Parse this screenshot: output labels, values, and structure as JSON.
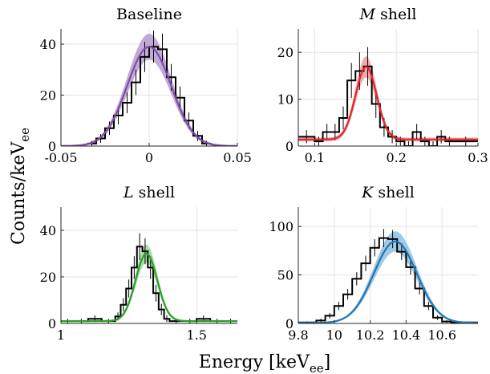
{
  "figure": {
    "ylabel_main": "Counts/keV",
    "ylabel_sub": "ee",
    "xlabel_main": "Energy [keV",
    "xlabel_sub": "ee",
    "xlabel_end": "]"
  },
  "chart_data": [
    {
      "type": "line",
      "title": "Baseline",
      "title_italic": "",
      "title_rest": "",
      "fit_color": "#7b4fa6",
      "band_color": "#b79bd0",
      "xlim": [
        -0.05,
        0.05
      ],
      "ylim": [
        0,
        46
      ],
      "xticks": [
        -0.05,
        0,
        0.05
      ],
      "xtick_labels": [
        "-0.05",
        "0",
        "0.05"
      ],
      "yticks": [
        0,
        20,
        40
      ],
      "ytick_labels": [
        "0",
        "20",
        "40"
      ],
      "hist": {
        "edges": [
          -0.035,
          -0.03,
          -0.025,
          -0.02,
          -0.015,
          -0.01,
          -0.005,
          0,
          0.005,
          0.01,
          0.015,
          0.02,
          0.025,
          0.03,
          0.035
        ],
        "counts": [
          1,
          3,
          7,
          12,
          17,
          25,
          35,
          39,
          38,
          27,
          19,
          10,
          4,
          1
        ]
      },
      "fit": {
        "amp": 39,
        "mu": 0.0,
        "sigma": 0.0125,
        "bg": 0
      }
    },
    {
      "type": "line",
      "title": "",
      "title_italic": "M",
      "title_rest": " shell",
      "fit_color": "#e0262b",
      "band_color": "#f29a9c",
      "xlim": [
        0.08,
        0.3
      ],
      "ylim": [
        0,
        25
      ],
      "xticks": [
        0.1,
        0.2,
        0.3
      ],
      "xtick_labels": [
        "0.1",
        "0.2",
        "0.3"
      ],
      "yticks": [
        0,
        10,
        20
      ],
      "ytick_labels": [
        "0",
        "10",
        "20"
      ],
      "hist": {
        "edges": [
          0.08,
          0.1,
          0.11,
          0.12,
          0.13,
          0.14,
          0.15,
          0.16,
          0.17,
          0.18,
          0.19,
          0.2,
          0.21,
          0.22,
          0.23,
          0.24,
          0.25,
          0.26,
          0.27,
          0.3
        ],
        "counts": [
          2,
          1,
          3,
          3,
          6,
          14,
          16,
          17,
          9,
          4,
          2,
          1,
          0,
          3,
          1,
          0,
          2,
          1,
          1
        ]
      },
      "fit": {
        "amp": 15.5,
        "mu": 0.163,
        "sigma": 0.013,
        "bg": 1.4
      }
    },
    {
      "type": "line",
      "title": "",
      "title_italic": "L",
      "title_rest": " shell",
      "fit_color": "#2aa02a",
      "band_color": "#98d898",
      "xlim": [
        1.0,
        1.65
      ],
      "ylim": [
        0,
        50
      ],
      "xticks": [
        1.0,
        1.5
      ],
      "xtick_labels": [
        "1",
        "1.5"
      ],
      "yticks": [
        0,
        20,
        40
      ],
      "ytick_labels": [
        "0",
        "20",
        "40"
      ],
      "hist": {
        "edges": [
          1.0,
          1.05,
          1.1,
          1.15,
          1.2,
          1.22,
          1.24,
          1.26,
          1.28,
          1.3,
          1.32,
          1.34,
          1.36,
          1.38,
          1.4,
          1.45,
          1.5,
          1.55,
          1.6,
          1.65
        ],
        "counts": [
          1,
          1,
          2,
          1,
          3,
          8,
          15,
          24,
          33,
          31,
          24,
          13,
          6,
          2,
          1,
          1,
          2,
          1,
          1
        ]
      },
      "fit": {
        "amp": 29,
        "mu": 1.315,
        "sigma": 0.04,
        "bg": 1
      }
    },
    {
      "type": "line",
      "title": "",
      "title_italic": "K",
      "title_rest": " shell",
      "fit_color": "#1f77b4",
      "band_color": "#8fbfe0",
      "xlim": [
        9.8,
        10.8
      ],
      "ylim": [
        0,
        120
      ],
      "xticks": [
        9.8,
        10.0,
        10.2,
        10.4,
        10.6
      ],
      "xtick_labels": [
        "9.8",
        "10",
        "10.2",
        "10.4",
        "10.6"
      ],
      "yticks": [
        0,
        50,
        100
      ],
      "ytick_labels": [
        "0",
        "50",
        "100"
      ],
      "hist": {
        "edges": [
          9.8,
          9.9,
          9.95,
          10.0,
          10.05,
          10.1,
          10.15,
          10.2,
          10.25,
          10.3,
          10.35,
          10.4,
          10.45,
          10.5,
          10.55,
          10.6,
          10.65,
          10.7,
          10.8
        ],
        "counts": [
          1,
          3,
          8,
          18,
          30,
          46,
          62,
          78,
          88,
          87,
          74,
          58,
          36,
          18,
          6,
          2,
          1,
          1
        ]
      },
      "fit": {
        "amp": 84,
        "mu": 10.34,
        "sigma": 0.12,
        "bg": 0.5
      }
    }
  ]
}
